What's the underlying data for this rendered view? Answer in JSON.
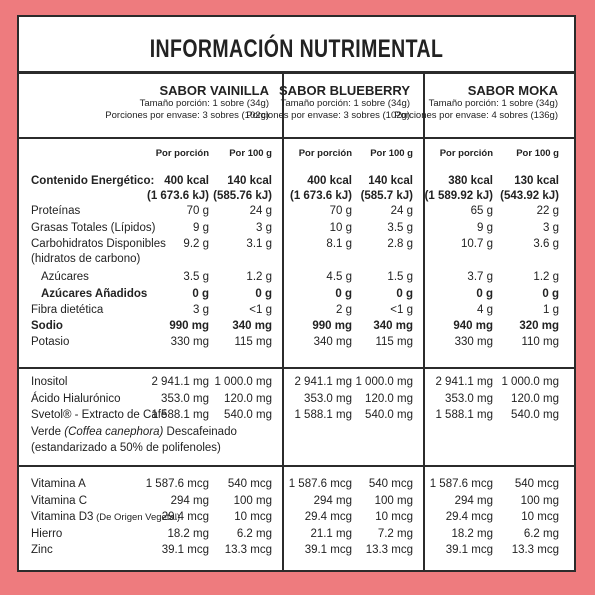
{
  "title": "INFORMACIÓN NUTRIMENTAL",
  "flavors": [
    {
      "name": "SABOR VAINILLA",
      "portion": "Tamaño porción: 1 sobre (34g)",
      "servings": "Porciones por envase: 3 sobres (102g)"
    },
    {
      "name": "SABOR BLUEBERRY",
      "portion": "Tamaño porción: 1 sobre (34g)",
      "servings": "Porciones por envase: 3 sobres (102g)"
    },
    {
      "name": "SABOR MOKA",
      "portion": "Tamaño porción: 1 sobre (34g)",
      "servings": "Porciones por envase: 4 sobres (136g)"
    }
  ],
  "col_headers": [
    "Por porción",
    "Por 100 g"
  ],
  "section1": [
    {
      "label": "Contenido Energético:",
      "bold": true,
      "values": [
        "400 kcal",
        "140 kcal",
        "400 kcal",
        "140 kcal",
        "380 kcal",
        "130 kcal"
      ],
      "values2": [
        "(1 673.6 kJ)",
        "(585.76 kJ)",
        "(1 673.6 kJ)",
        "(585.7 kJ)",
        "(1 589.92 kJ)",
        "(543.92 kJ)"
      ]
    },
    {
      "label": "Proteínas",
      "values": [
        "70 g",
        "24 g",
        "70 g",
        "24 g",
        "65 g",
        "22 g"
      ]
    },
    {
      "label": "Grasas Totales (Lípidos)",
      "values": [
        "9 g",
        "3 g",
        "10 g",
        "3.5 g",
        "9 g",
        "3 g"
      ]
    },
    {
      "label": "Carbohidratos Disponibles",
      "label2": "(hidratos de carbono)",
      "values": [
        "9.2 g",
        "3.1 g",
        "8.1 g",
        "2.8 g",
        "10.7 g",
        "3.6 g"
      ]
    },
    {
      "label": "Azúcares",
      "indent": true,
      "values": [
        "3.5 g",
        "1.2 g",
        "4.5 g",
        "1.5 g",
        "3.7 g",
        "1.2 g"
      ]
    },
    {
      "label": "Azúcares Añadidos",
      "indent": true,
      "bold": true,
      "values": [
        "0 g",
        "0 g",
        "0 g",
        "0 g",
        "0 g",
        "0 g"
      ]
    },
    {
      "label": "Fibra dietética",
      "values": [
        "3 g",
        "<1 g",
        "2 g",
        "<1 g",
        "4 g",
        "1 g"
      ]
    },
    {
      "label": "Sodio",
      "bold": true,
      "values": [
        "990 mg",
        "340 mg",
        "990 mg",
        "340 mg",
        "940 mg",
        "320 mg"
      ]
    },
    {
      "label": "Potasio",
      "values": [
        "330 mg",
        "115 mg",
        "340 mg",
        "115 mg",
        "330 mg",
        "110 mg"
      ]
    }
  ],
  "section2": [
    {
      "label": "Inositol",
      "values": [
        "2 941.1 mg",
        "1 000.0 mg",
        "2 941.1 mg",
        "1 000.0 mg",
        "2 941.1 mg",
        "1 000.0 mg"
      ]
    },
    {
      "label": "Ácido Hialurónico",
      "values": [
        "353.0 mg",
        "120.0 mg",
        "353.0 mg",
        "120.0 mg",
        "353.0 mg",
        "120.0 mg"
      ]
    },
    {
      "label": "Svetol® - Extracto de Café",
      "values": [
        "1 588.1 mg",
        "540.0 mg",
        "1 588.1 mg",
        "540.0 mg",
        "1 588.1 mg",
        "540.0 mg"
      ]
    }
  ],
  "svetol_line2_a": "Verde ",
  "svetol_line2_b": "(Coffea canephora)",
  "svetol_line2_c": " Descafeinado",
  "svetol_line3": "(estandarizado a 50% de polifenoles)",
  "section3": [
    {
      "label": "Vitamina A",
      "values": [
        "1 587.6 mcg",
        "540 mcg",
        "1 587.6 mcg",
        "540 mcg",
        "1 587.6 mcg",
        "540 mcg"
      ]
    },
    {
      "label": "Vitamina C",
      "values": [
        "294 mg",
        "100 mg",
        "294 mg",
        "100 mg",
        "294 mg",
        "100 mg"
      ]
    },
    {
      "label": "Vitamina D3",
      "label_small": "(De Origen Vegetal)",
      "values": [
        "29.4 mcg",
        "10 mcg",
        "29.4 mcg",
        "10 mcg",
        "29.4 mcg",
        "10 mcg"
      ]
    },
    {
      "label": "Hierro",
      "values": [
        "18.2 mg",
        "6.2 mg",
        "21.1 mg",
        "7.2 mg",
        "18.2 mg",
        "6.2 mg"
      ]
    },
    {
      "label": "Zinc",
      "values": [
        "39.1 mcg",
        "13.3 mcg",
        "39.1 mcg",
        "13.3 mcg",
        "39.1 mcg",
        "13.3 mcg"
      ]
    }
  ]
}
